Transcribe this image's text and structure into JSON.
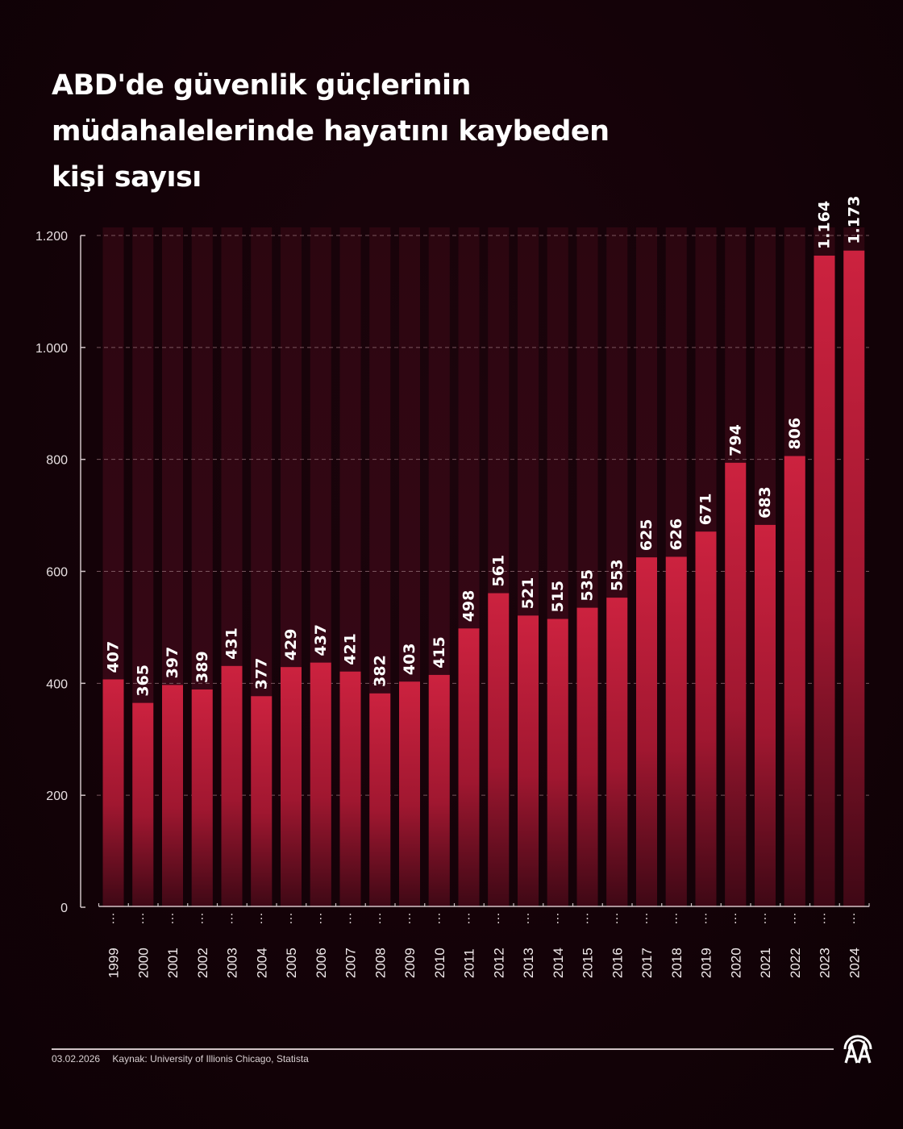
{
  "title": {
    "line1": "ABD'de güvenlik güçlerinin",
    "line2": "müdahalelerinde hayatını kaybeden",
    "line3": "kişi sayısı"
  },
  "footer": {
    "date": "03.02.2026",
    "source": "Kaynak: University of Illionis Chicago, Statista",
    "logo": "aa-logo-icon"
  },
  "colors": {
    "bar_top": "#c8203c",
    "bar_bottom": "#4a0a1a",
    "background": "#140208",
    "column_bg": "#2a0610",
    "text": "#ffffff",
    "axis": "#cfc3c5"
  },
  "chart_data": {
    "type": "bar",
    "title": "ABD'de güvenlik güçlerinin müdahalelerinde hayatını kaybeden kişi sayısı",
    "xlabel": "",
    "ylabel": "",
    "categories": [
      "1999",
      "2000",
      "2001",
      "2002",
      "2003",
      "2004",
      "2005",
      "2006",
      "2007",
      "2008",
      "2009",
      "2010",
      "2011",
      "2012",
      "2013",
      "2014",
      "2015",
      "2016",
      "2017",
      "2018",
      "2019",
      "2020",
      "2021",
      "2022",
      "2023",
      "2024"
    ],
    "values": [
      407,
      365,
      397,
      389,
      431,
      377,
      429,
      437,
      421,
      382,
      403,
      415,
      498,
      561,
      521,
      515,
      535,
      553,
      625,
      626,
      671,
      794,
      683,
      806,
      1164,
      1173
    ],
    "value_labels": [
      "407",
      "365",
      "397",
      "389",
      "431",
      "377",
      "429",
      "437",
      "421",
      "382",
      "403",
      "415",
      "498",
      "561",
      "521",
      "515",
      "535",
      "553",
      "625",
      "626",
      "671",
      "794",
      "683",
      "806",
      "1.164",
      "1.173"
    ],
    "ylim": [
      0,
      1200
    ],
    "yticks": [
      0,
      200,
      400,
      600,
      800,
      1000,
      1200
    ],
    "ytick_labels": [
      "0",
      "200",
      "400",
      "600",
      "800",
      "1.000",
      "1.200"
    ],
    "grid": true,
    "grid_style": "dashed",
    "legend": "none",
    "label_orientation": "vertical"
  }
}
